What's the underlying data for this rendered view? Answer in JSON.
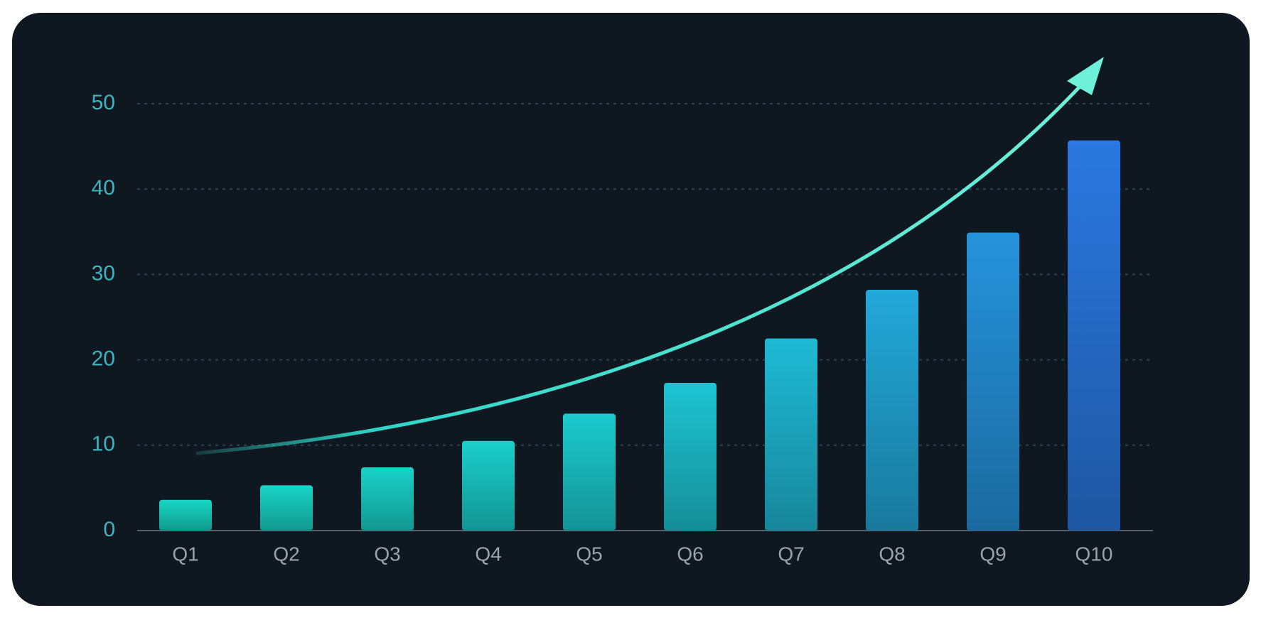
{
  "chart_data": {
    "type": "bar",
    "categories": [
      "Q1",
      "Q2",
      "Q3",
      "Q4",
      "Q5",
      "Q6",
      "Q7",
      "Q8",
      "Q9",
      "Q10"
    ],
    "values": [
      3.6,
      5.3,
      7.4,
      10.5,
      13.7,
      17.3,
      22.5,
      28.2,
      34.9,
      45.7
    ],
    "colors": [
      "#17d6c4",
      "#18d4c6",
      "#19d2c8",
      "#1acfcb",
      "#1bcbce",
      "#1dc4d2",
      "#1fbad6",
      "#22a8d9",
      "#2593dc",
      "#2a78e0"
    ],
    "ylim": [
      0,
      50
    ],
    "yticks": [
      0,
      10,
      20,
      30,
      40,
      50
    ],
    "grid": true
  }
}
